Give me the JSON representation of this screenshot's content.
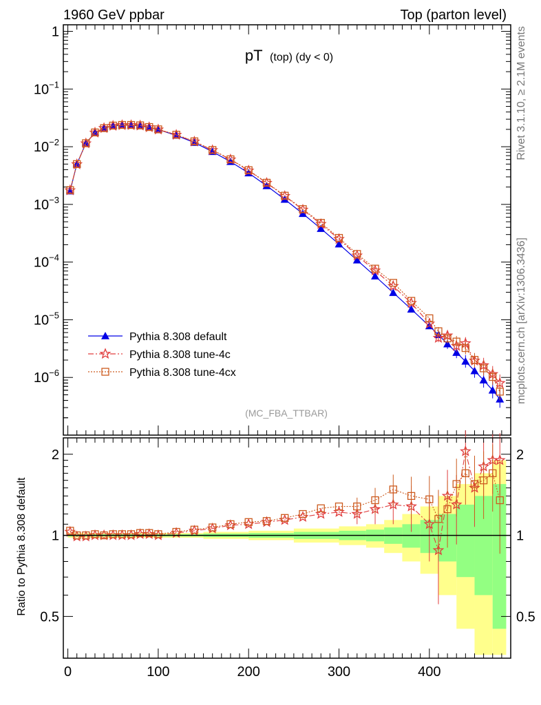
{
  "header": {
    "left": "1960 GeV ppbar",
    "right": "Top (parton level)"
  },
  "side": {
    "rivet": "Rivet 3.1.10, ≥ 2.1M events",
    "mcplots": "mcplots.cern.ch [arXiv:1306.3436]"
  },
  "chart_data": {
    "type": "scatter",
    "title": "pT (top) (dy < 0)",
    "title_main": "pT",
    "title_sub": "(top)  (dy < 0)",
    "analysis": "(MC_FBA_TTBAR)",
    "xlabel": "",
    "ylabel": "",
    "xlim": [
      -5,
      490
    ],
    "ylim": [
      1e-07,
      1.3
    ],
    "yscale": "log",
    "x_ticks": [
      "0",
      "100",
      "200",
      "300",
      "400"
    ],
    "y_ticks": [
      {
        "mant": "1",
        "exp": ""
      },
      {
        "mant": "10",
        "exp": "−1"
      },
      {
        "mant": "10",
        "exp": "−2"
      },
      {
        "mant": "10",
        "exp": "−3"
      },
      {
        "mant": "10",
        "exp": "−4"
      },
      {
        "mant": "10",
        "exp": "−5"
      },
      {
        "mant": "10",
        "exp": "−6"
      }
    ],
    "legend_position": "bottom-left",
    "series": [
      {
        "name": "Pythia 8.308 default",
        "color": "#0000e6",
        "marker": "triangle",
        "line": "solid"
      },
      {
        "name": "Pythia 8.308 tune-4c",
        "color": "#e03c3c",
        "marker": "star",
        "line": "dashdot"
      },
      {
        "name": "Pythia 8.308 tune-4cx",
        "color": "#cc5a1e",
        "marker": "square",
        "line": "dotted"
      }
    ],
    "x": [
      2.5,
      10,
      20,
      30,
      40,
      50,
      60,
      70,
      80,
      90,
      100,
      120,
      140,
      160,
      180,
      200,
      220,
      240,
      260,
      280,
      300,
      320,
      340,
      360,
      380,
      400,
      410,
      420,
      430,
      440,
      450,
      460,
      470,
      478
    ],
    "default_values": [
      0.0017,
      0.005,
      0.0115,
      0.0175,
      0.021,
      0.023,
      0.0236,
      0.0236,
      0.023,
      0.0215,
      0.0198,
      0.0157,
      0.0118,
      0.0082,
      0.0055,
      0.0035,
      0.0021,
      0.00122,
      0.00069,
      0.00038,
      0.000205,
      0.000108,
      5.7e-05,
      2.95e-05,
      1.52e-05,
      7.8e-06,
      5.5e-06,
      3.8e-06,
      2.7e-06,
      1.9e-06,
      1.3e-06,
      9e-07,
      6e-07,
      4.2e-07
    ],
    "ratio_4c": [
      1.03,
      0.99,
      0.99,
      1.0,
      1.0,
      1.0,
      1.0,
      1.0,
      1.01,
      1.01,
      1.0,
      1.02,
      1.04,
      1.06,
      1.09,
      1.1,
      1.12,
      1.14,
      1.17,
      1.2,
      1.22,
      1.2,
      1.25,
      1.3,
      1.28,
      1.1,
      0.88,
      1.4,
      1.3,
      2.05,
      1.5,
      1.8,
      1.9,
      1.9
    ],
    "ratio_4cx": [
      1.04,
      1.0,
      1.0,
      1.01,
      1.0,
      1.01,
      1.01,
      1.01,
      1.02,
      1.02,
      1.01,
      1.03,
      1.05,
      1.07,
      1.1,
      1.12,
      1.13,
      1.16,
      1.2,
      1.26,
      1.28,
      1.28,
      1.35,
      1.48,
      1.4,
      1.36,
      1.15,
      1.25,
      1.55,
      1.7,
      1.55,
      1.6,
      1.7,
      1.35
    ],
    "band_x_edges": [
      0,
      100,
      150,
      200,
      250,
      300,
      330,
      350,
      370,
      390,
      410,
      430,
      450,
      470,
      485
    ],
    "band_inner": [
      0.01,
      0.01,
      0.015,
      0.02,
      0.03,
      0.04,
      0.05,
      0.07,
      0.1,
      0.14,
      0.2,
      0.3,
      0.4,
      0.55
    ],
    "band_outer": [
      0.02,
      0.02,
      0.03,
      0.04,
      0.06,
      0.08,
      0.1,
      0.14,
      0.2,
      0.28,
      0.4,
      0.55,
      0.7,
      0.9
    ],
    "ratio": {
      "ylabel": "Ratio to Pythia 8.308 default",
      "ylim": [
        0.35,
        2.3
      ],
      "y_ticks": [
        "0.5",
        "1",
        "2"
      ]
    }
  }
}
